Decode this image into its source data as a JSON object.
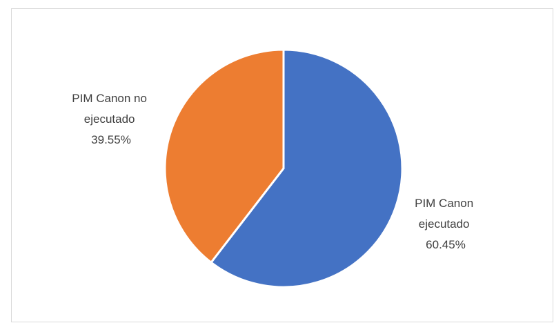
{
  "chart_data": {
    "type": "pie",
    "title": "",
    "legend": "none",
    "slices": [
      {
        "label_lines": [
          "PIM Canon",
          "ejecutado"
        ],
        "value": 60.45,
        "value_text": "60.45%",
        "color": "#4472C4"
      },
      {
        "label_lines": [
          "PIM Canon no",
          "ejecutado"
        ],
        "value": 39.55,
        "value_text": "39.55%",
        "color": "#ED7D31"
      }
    ]
  }
}
